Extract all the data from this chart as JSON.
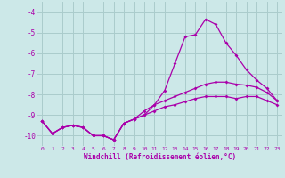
{
  "xlabel": "Windchill (Refroidissement éolien,°C)",
  "background_color": "#cce8e8",
  "grid_color": "#aacccc",
  "line_color": "#aa00aa",
  "xlim": [
    -0.5,
    23.5
  ],
  "ylim": [
    -10.5,
    -3.5
  ],
  "yticks": [
    -10,
    -9,
    -8,
    -7,
    -6,
    -5,
    -4
  ],
  "xticks": [
    0,
    1,
    2,
    3,
    4,
    5,
    6,
    7,
    8,
    9,
    10,
    11,
    12,
    13,
    14,
    15,
    16,
    17,
    18,
    19,
    20,
    21,
    22,
    23
  ],
  "series1_x": [
    0,
    1,
    2,
    3,
    4,
    5,
    6,
    7,
    8,
    9,
    10,
    11,
    12,
    13,
    14,
    15,
    16,
    17,
    18,
    19,
    20,
    21,
    22,
    23
  ],
  "series1_y": [
    -9.3,
    -9.9,
    -9.6,
    -9.5,
    -9.6,
    -10.0,
    -10.0,
    -10.2,
    -9.4,
    -9.2,
    -9.0,
    -8.5,
    -7.8,
    -6.5,
    -5.2,
    -5.1,
    -4.35,
    -4.6,
    -5.5,
    -6.1,
    -6.8,
    -7.3,
    -7.7,
    -8.3
  ],
  "series2_x": [
    0,
    1,
    2,
    3,
    4,
    5,
    6,
    7,
    8,
    9,
    10,
    11,
    12,
    13,
    14,
    15,
    16,
    17,
    18,
    19,
    20,
    21,
    22,
    23
  ],
  "series2_y": [
    -9.3,
    -9.9,
    -9.6,
    -9.5,
    -9.6,
    -10.0,
    -10.0,
    -10.2,
    -9.4,
    -9.2,
    -8.8,
    -8.5,
    -8.3,
    -8.1,
    -7.9,
    -7.7,
    -7.5,
    -7.4,
    -7.4,
    -7.5,
    -7.55,
    -7.65,
    -7.9,
    -8.3
  ],
  "series3_x": [
    0,
    1,
    2,
    3,
    4,
    5,
    6,
    7,
    8,
    9,
    10,
    11,
    12,
    13,
    14,
    15,
    16,
    17,
    18,
    19,
    20,
    21,
    22,
    23
  ],
  "series3_y": [
    -9.3,
    -9.9,
    -9.6,
    -9.5,
    -9.6,
    -10.0,
    -10.0,
    -10.2,
    -9.4,
    -9.2,
    -9.0,
    -8.8,
    -8.6,
    -8.5,
    -8.35,
    -8.2,
    -8.1,
    -8.1,
    -8.1,
    -8.2,
    -8.1,
    -8.1,
    -8.3,
    -8.5
  ]
}
